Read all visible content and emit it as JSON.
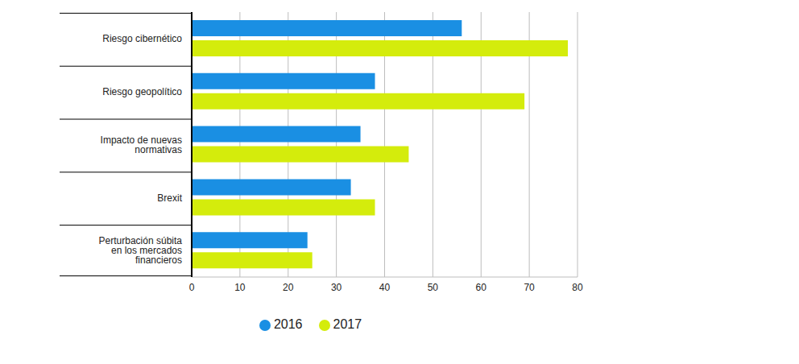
{
  "chart_data": {
    "type": "bar",
    "orientation": "horizontal",
    "categories": [
      "Riesgo cibernético",
      "Riesgo geopolítico",
      "Impacto de nuevas normativas",
      "Brexit",
      "Perturbación súbita en los mercados financieros"
    ],
    "series": [
      {
        "name": "2016",
        "color": "#1a8fe3",
        "values": [
          56,
          38,
          35,
          33,
          24
        ]
      },
      {
        "name": "2017",
        "color": "#d4ec0c",
        "values": [
          78,
          69,
          45,
          38,
          25
        ]
      }
    ],
    "xlim": [
      0,
      80
    ],
    "xticks": [
      0,
      10,
      20,
      30,
      40,
      50,
      60,
      70,
      80
    ],
    "grid": true,
    "legend": "bottom"
  }
}
